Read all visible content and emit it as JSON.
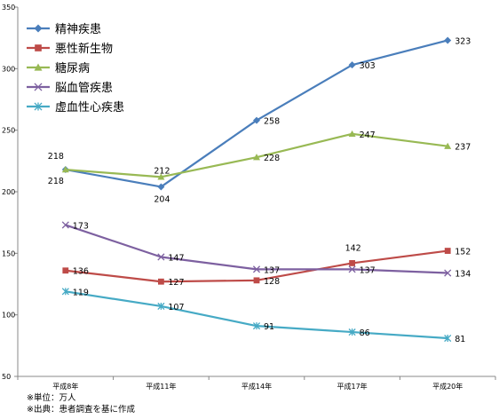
{
  "notes": [
    "※単位：万人",
    "※出典：患者調査を基に作成"
  ],
  "chart_data": {
    "type": "line",
    "categories": [
      "平成8年",
      "平成11年",
      "平成14年",
      "平成17年",
      "平成20年"
    ],
    "ylim": [
      50,
      350
    ],
    "yticks": [
      50,
      100,
      150,
      200,
      250,
      300,
      350
    ],
    "grid": false,
    "legend_position": "top-left",
    "series": [
      {
        "name": "精神疾患",
        "values": [
          218,
          204,
          258,
          303,
          323
        ],
        "color": "#4a7ebb",
        "marker": "diamond"
      },
      {
        "name": "悪性新生物",
        "values": [
          136,
          127,
          128,
          142,
          152
        ],
        "color": "#be4b48",
        "marker": "square"
      },
      {
        "name": "糖尿病",
        "values": [
          218,
          212,
          228,
          247,
          237
        ],
        "color": "#98b954",
        "marker": "triangle"
      },
      {
        "name": "脳血管疾患",
        "values": [
          173,
          147,
          137,
          137,
          134
        ],
        "color": "#7d60a0",
        "marker": "x"
      },
      {
        "name": "虚血性心疾患",
        "values": [
          119,
          107,
          91,
          86,
          81
        ],
        "color": "#46aac5",
        "marker": "star"
      }
    ]
  }
}
